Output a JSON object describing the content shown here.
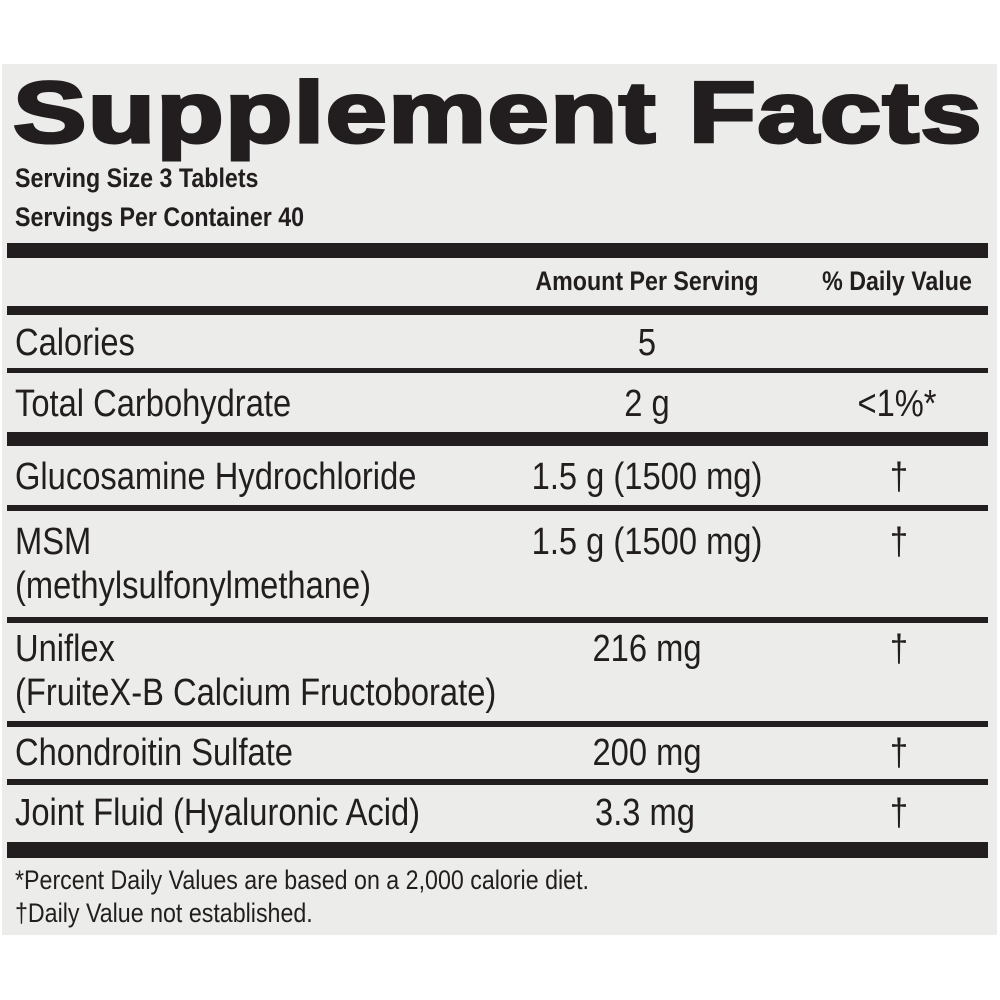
{
  "title": "Supplement Facts",
  "serving_size": "Serving Size 3 Tablets",
  "servings_per_container": "Servings Per Container 40",
  "header": {
    "amount": "Amount Per Serving",
    "dv": "% Daily Value"
  },
  "rows": [
    {
      "name": "Calories",
      "amount": "5",
      "dv": ""
    },
    {
      "name": "Total Carbohydrate",
      "amount": "2 g",
      "dv": "<1%*"
    },
    {
      "name": "Glucosamine Hydrochloride",
      "amount": "1.5 g (1500 mg)",
      "dv": "†"
    },
    {
      "name": "MSM",
      "subname": "(methylsulfonylmethane)",
      "amount": "1.5 g (1500 mg)",
      "dv": "†"
    },
    {
      "name": "Uniflex",
      "subname": "(FruiteX-B Calcium Fructoborate)",
      "amount": "216 mg",
      "dv": "†"
    },
    {
      "name": "Chondroitin Sulfate",
      "amount": "200 mg",
      "dv": "†"
    },
    {
      "name": "Joint Fluid (Hyaluronic Acid)",
      "amount": "3.3 mg",
      "dv": "†"
    }
  ],
  "footnotes": [
    "*Percent Daily Values are based on a 2,000 calorie diet.",
    "†Daily Value not established."
  ],
  "colors": {
    "ink": "#221e1f",
    "panel": "#ececea"
  }
}
